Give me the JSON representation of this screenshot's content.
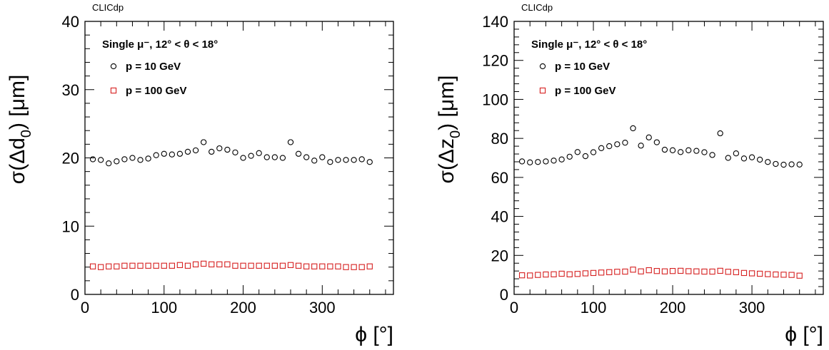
{
  "chart_data": [
    {
      "type": "scatter",
      "label": "CLICdp",
      "title": "Single μ⁻, 12° < θ < 18°",
      "xlabel": "ϕ [°]",
      "ylabel": "σ(Δd0) [μm]",
      "ylabel_parts": {
        "pre": "σ(Δd",
        "sub": "0",
        "post": ") [μm]"
      },
      "xlim": [
        0,
        390
      ],
      "ylim": [
        0,
        40
      ],
      "xticks": [
        0,
        100,
        200,
        300
      ],
      "yticks": [
        0,
        10,
        20,
        30,
        40
      ],
      "legend_position": "top-left",
      "x": [
        10,
        20,
        30,
        40,
        50,
        60,
        70,
        80,
        90,
        100,
        110,
        120,
        130,
        140,
        150,
        160,
        170,
        180,
        190,
        200,
        210,
        220,
        230,
        240,
        250,
        260,
        270,
        280,
        290,
        300,
        310,
        320,
        330,
        340,
        350,
        360
      ],
      "series": [
        {
          "name": "p = 10 GeV",
          "marker": "open-circle",
          "color": "#000000",
          "values": [
            19.8,
            19.7,
            19.2,
            19.5,
            19.8,
            20.0,
            19.7,
            19.9,
            20.4,
            20.6,
            20.5,
            20.6,
            20.9,
            21.1,
            22.3,
            20.9,
            21.4,
            21.2,
            20.8,
            20.0,
            20.3,
            20.7,
            20.1,
            20.1,
            20.0,
            22.3,
            20.6,
            20.1,
            19.6,
            20.1,
            19.4,
            19.7,
            19.7,
            19.7,
            19.8,
            19.4
          ]
        },
        {
          "name": "p = 100 GeV",
          "marker": "open-square",
          "color": "#d62020",
          "values": [
            4.1,
            4.0,
            4.1,
            4.1,
            4.2,
            4.2,
            4.2,
            4.2,
            4.2,
            4.2,
            4.2,
            4.3,
            4.2,
            4.4,
            4.5,
            4.4,
            4.4,
            4.4,
            4.2,
            4.2,
            4.2,
            4.2,
            4.2,
            4.2,
            4.2,
            4.3,
            4.2,
            4.1,
            4.1,
            4.1,
            4.1,
            4.1,
            4.0,
            4.0,
            4.0,
            4.1
          ]
        }
      ]
    },
    {
      "type": "scatter",
      "label": "CLICdp",
      "title": "Single μ⁻, 12° < θ < 18°",
      "xlabel": "ϕ [°]",
      "ylabel": "σ(Δz0) [μm]",
      "ylabel_parts": {
        "pre": "σ(Δz",
        "sub": "0",
        "post": ") [μm]"
      },
      "xlim": [
        0,
        390
      ],
      "ylim": [
        0,
        140
      ],
      "xticks": [
        0,
        100,
        200,
        300
      ],
      "yticks": [
        0,
        20,
        40,
        60,
        80,
        100,
        120,
        140
      ],
      "legend_position": "top-left",
      "x": [
        10,
        20,
        30,
        40,
        50,
        60,
        70,
        80,
        90,
        100,
        110,
        120,
        130,
        140,
        150,
        160,
        170,
        180,
        190,
        200,
        210,
        220,
        230,
        240,
        250,
        260,
        270,
        280,
        290,
        300,
        310,
        320,
        330,
        340,
        350,
        360
      ],
      "series": [
        {
          "name": "p = 10 GeV",
          "marker": "open-circle",
          "color": "#000000",
          "values": [
            68.2,
            67.7,
            67.9,
            68.2,
            68.6,
            69.2,
            70.6,
            73.0,
            70.9,
            72.9,
            75.0,
            76.0,
            77.0,
            77.8,
            85.2,
            76.3,
            80.5,
            78.0,
            74.2,
            73.9,
            73.0,
            73.9,
            73.6,
            72.9,
            71.5,
            82.6,
            70.0,
            72.3,
            69.7,
            70.3,
            69.1,
            67.9,
            66.9,
            66.5,
            66.7,
            66.6
          ]
        },
        {
          "name": "p = 100 GeV",
          "marker": "open-square",
          "color": "#d62020",
          "values": [
            9.8,
            9.7,
            10.0,
            10.2,
            10.3,
            10.6,
            10.3,
            10.5,
            10.8,
            11.0,
            11.2,
            11.4,
            11.6,
            11.7,
            12.7,
            11.8,
            12.4,
            12.0,
            11.8,
            12.0,
            12.1,
            11.9,
            11.8,
            11.7,
            11.7,
            12.1,
            11.6,
            11.4,
            11.0,
            10.8,
            10.6,
            10.4,
            10.2,
            10.1,
            10.0,
            9.6
          ]
        }
      ]
    }
  ]
}
